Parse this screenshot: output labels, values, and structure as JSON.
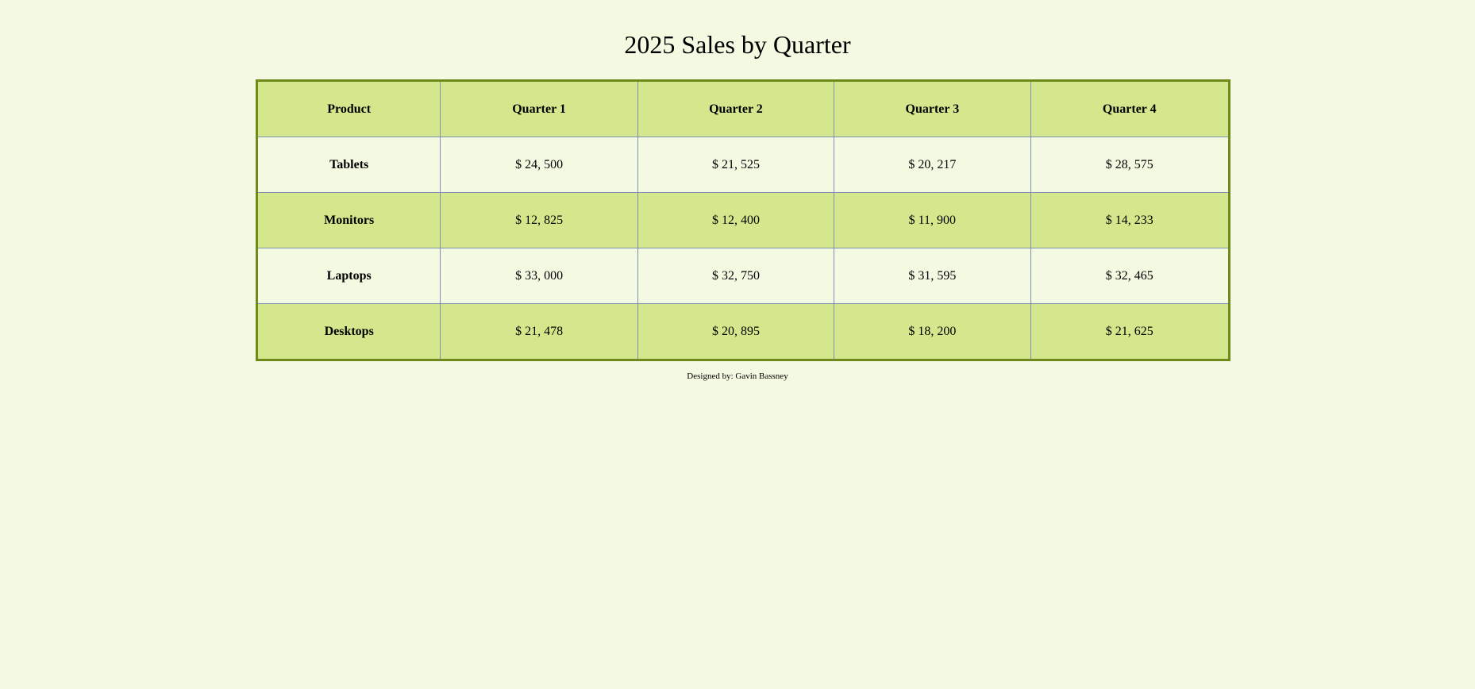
{
  "title": "2025 Sales by Quarter",
  "table": {
    "headers": [
      "Product",
      "Quarter 1",
      "Quarter 2",
      "Quarter 3",
      "Quarter 4"
    ],
    "rows": [
      {
        "product": "Tablets",
        "q1": "$ 24, 500",
        "q2": "$ 21, 525",
        "q3": "$ 20, 217",
        "q4": "$ 28, 575"
      },
      {
        "product": "Monitors",
        "q1": "$ 12, 825",
        "q2": "$ 12, 400",
        "q3": "$ 11, 900",
        "q4": "$ 14, 233"
      },
      {
        "product": "Laptops",
        "q1": "$ 33, 000",
        "q2": "$ 32, 750",
        "q3": "$ 31, 595",
        "q4": "$ 32, 465"
      },
      {
        "product": "Desktops",
        "q1": "$ 21, 478",
        "q2": "$ 20, 895",
        "q3": "$ 18, 200",
        "q4": "$ 21, 625"
      }
    ]
  },
  "footer": {
    "credit": "Designed by: Gavin Bassney"
  },
  "colors": {
    "background": "#f4f9e2",
    "accent_row": "#d4e78c",
    "table_border": "#6f8a1a",
    "cell_border": "#7f8fb0"
  }
}
